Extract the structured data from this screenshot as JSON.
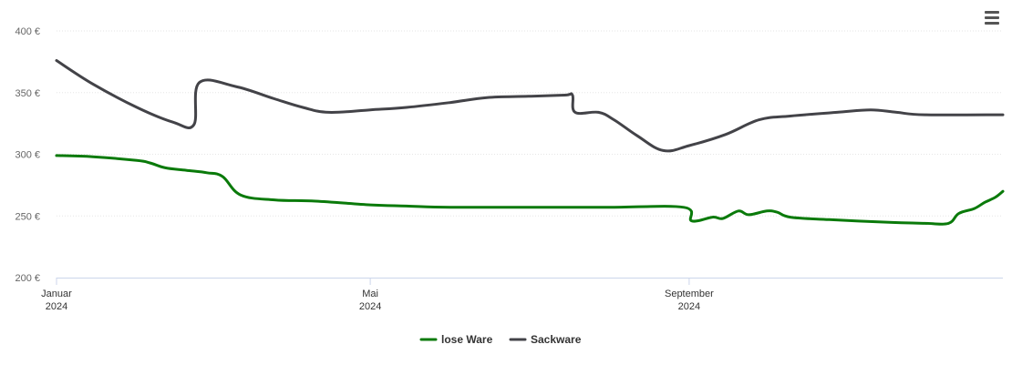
{
  "chart_data": {
    "type": "line",
    "title": "",
    "xlabel": "",
    "ylabel": "",
    "ylim": [
      200,
      400
    ],
    "y_ticks": [
      "200 €",
      "250 €",
      "300 €",
      "350 €",
      "400 €"
    ],
    "y_tick_values": [
      200,
      250,
      300,
      350,
      400
    ],
    "x_ticks": [
      {
        "month": "Januar",
        "year": "2024",
        "date": "2024-01-01"
      },
      {
        "month": "Mai",
        "year": "2024",
        "date": "2024-05-01"
      },
      {
        "month": "September",
        "year": "2024",
        "date": "2024-09-01"
      }
    ],
    "xlim": [
      "2024-01-01",
      "2024-12-31"
    ],
    "grid": "horizontal",
    "legend_position": "bottom-center",
    "series": [
      {
        "name": "lose Ware",
        "color": "#0a7a0a",
        "points": [
          [
            "2024-01-01",
            299
          ],
          [
            "2024-01-15",
            298
          ],
          [
            "2024-02-01",
            295
          ],
          [
            "2024-02-06",
            293
          ],
          [
            "2024-02-12",
            289
          ],
          [
            "2024-02-20",
            287
          ],
          [
            "2024-02-28",
            285
          ],
          [
            "2024-03-05",
            282
          ],
          [
            "2024-03-12",
            267
          ],
          [
            "2024-03-25",
            263
          ],
          [
            "2024-04-10",
            262
          ],
          [
            "2024-05-01",
            259
          ],
          [
            "2024-05-15",
            258
          ],
          [
            "2024-06-01",
            257
          ],
          [
            "2024-07-01",
            257
          ],
          [
            "2024-08-01",
            257
          ],
          [
            "2024-08-30",
            257
          ],
          [
            "2024-09-02",
            246
          ],
          [
            "2024-09-10",
            249
          ],
          [
            "2024-09-14",
            248
          ],
          [
            "2024-09-20",
            254
          ],
          [
            "2024-09-24",
            251
          ],
          [
            "2024-10-01",
            254
          ],
          [
            "2024-10-05",
            253
          ],
          [
            "2024-10-10",
            249
          ],
          [
            "2024-10-25",
            247
          ],
          [
            "2024-11-15",
            245
          ],
          [
            "2024-12-01",
            244
          ],
          [
            "2024-12-10",
            244
          ],
          [
            "2024-12-14",
            252
          ],
          [
            "2024-12-20",
            256
          ],
          [
            "2024-12-24",
            261
          ],
          [
            "2024-12-28",
            265
          ],
          [
            "2024-12-31",
            270
          ]
        ]
      },
      {
        "name": "Sackware",
        "color": "#434348",
        "points": [
          [
            "2024-01-01",
            376
          ],
          [
            "2024-01-15",
            357
          ],
          [
            "2024-02-01",
            338
          ],
          [
            "2024-02-15",
            326
          ],
          [
            "2024-02-23",
            324
          ],
          [
            "2024-02-25",
            358
          ],
          [
            "2024-03-10",
            355
          ],
          [
            "2024-03-25",
            345
          ],
          [
            "2024-04-05",
            338
          ],
          [
            "2024-04-15",
            334
          ],
          [
            "2024-05-01",
            336
          ],
          [
            "2024-05-15",
            338
          ],
          [
            "2024-06-01",
            342
          ],
          [
            "2024-06-15",
            346
          ],
          [
            "2024-07-01",
            347
          ],
          [
            "2024-07-15",
            348
          ],
          [
            "2024-07-18",
            348
          ],
          [
            "2024-07-19",
            334
          ],
          [
            "2024-07-28",
            334
          ],
          [
            "2024-08-03",
            328
          ],
          [
            "2024-08-12",
            315
          ],
          [
            "2024-08-22",
            303
          ],
          [
            "2024-09-01",
            307
          ],
          [
            "2024-09-15",
            316
          ],
          [
            "2024-09-28",
            328
          ],
          [
            "2024-10-10",
            331
          ],
          [
            "2024-10-28",
            334
          ],
          [
            "2024-11-10",
            336
          ],
          [
            "2024-11-20",
            334
          ],
          [
            "2024-12-01",
            332
          ],
          [
            "2024-12-31",
            332
          ]
        ]
      }
    ]
  },
  "menu": {
    "icon": "hamburger-menu-icon"
  }
}
